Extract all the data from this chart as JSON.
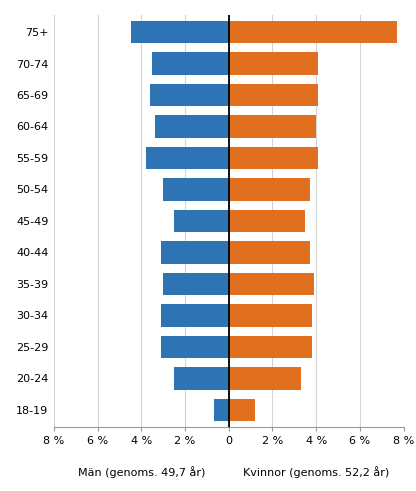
{
  "age_groups": [
    "18-19",
    "20-24",
    "25-29",
    "30-34",
    "35-39",
    "40-44",
    "45-49",
    "50-54",
    "55-59",
    "60-64",
    "65-69",
    "70-74",
    "75+"
  ],
  "men_values": [
    -0.7,
    -2.5,
    -3.1,
    -3.1,
    -3.0,
    -3.1,
    -2.5,
    -3.0,
    -3.8,
    -3.4,
    -3.6,
    -3.5,
    -4.5
  ],
  "women_values": [
    1.2,
    3.3,
    3.8,
    3.8,
    3.9,
    3.7,
    3.5,
    3.7,
    4.1,
    4.0,
    4.1,
    4.1,
    7.7
  ],
  "men_color": "#2E74B5",
  "women_color": "#E07020",
  "xlabel_men": "Män (genoms. 49,7 år)",
  "xlabel_women": "Kvinnor (genoms. 52,2 år)",
  "xlim": [
    -8,
    8
  ],
  "xticks": [
    -8,
    -6,
    -4,
    -2,
    0,
    2,
    4,
    6,
    8
  ],
  "xtick_labels": [
    "8 %",
    "6 %",
    "4 %",
    "2 %",
    "0",
    "2 %",
    "4 %",
    "6 %",
    "8 %"
  ],
  "background_color": "#ffffff",
  "grid_color": "#d4d4d4",
  "bar_height": 0.72
}
